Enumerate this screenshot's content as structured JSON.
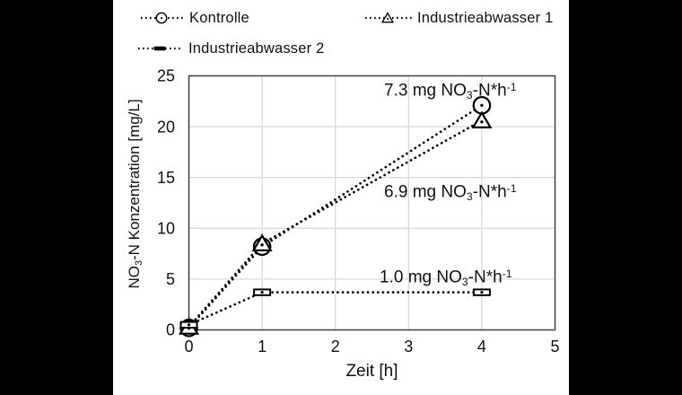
{
  "canvas": {
    "background": "#000000",
    "figure_background": "#ffffff"
  },
  "legend": {
    "position": "top",
    "items": [
      {
        "label": "Kontrolle",
        "marker": "circle",
        "line_style": "dotted"
      },
      {
        "label": "Industrieabwasser 1",
        "marker": "triangle",
        "line_style": "dotted"
      },
      {
        "label": "Industrieabwasser 2",
        "marker": "dash",
        "line_style": "dotted"
      }
    ]
  },
  "chart_data": {
    "type": "line",
    "title": "",
    "xlabel": "Zeit [h]",
    "ylabel": "NO3-N Konzentration [mg/L]",
    "ylabel_parts": [
      {
        "t": "NO"
      },
      {
        "t": "3",
        "s": "sub"
      },
      {
        "t": "-N Konzentration [mg/L]"
      }
    ],
    "xlim": [
      0,
      5
    ],
    "ylim": [
      0,
      25
    ],
    "xticks": [
      0,
      1,
      2,
      3,
      4,
      5
    ],
    "yticks": [
      0,
      5,
      10,
      15,
      20,
      25
    ],
    "grid": true,
    "grid_color": "#d9d9d9",
    "frame_color": "#3f3f3f",
    "series_color": "#000000",
    "line_style": "dotted",
    "x": [
      0,
      1,
      4
    ],
    "series": [
      {
        "name": "Kontrolle",
        "marker": "circle",
        "values": [
          0.2,
          8.2,
          22.1
        ],
        "rate": "7.3 mg NO3-N*h-1"
      },
      {
        "name": "Industrieabwasser 1",
        "marker": "triangle",
        "values": [
          0.3,
          8.5,
          20.6
        ],
        "rate": "6.9 mg NO3-N*h-1"
      },
      {
        "name": "Industrieabwasser 2",
        "marker": "dash",
        "values": [
          0.5,
          3.7,
          3.7
        ],
        "rate": "1.0 mg NO3-N*h-1"
      }
    ],
    "annotations": [
      {
        "series": "Kontrolle",
        "parts": [
          {
            "t": "7.3 mg NO"
          },
          {
            "t": "3",
            "s": "sub"
          },
          {
            "t": "-N*h"
          },
          {
            "t": "-1",
            "s": "sup"
          }
        ]
      },
      {
        "series": "Industrieabwasser 1",
        "parts": [
          {
            "t": "6.9 mg NO"
          },
          {
            "t": "3",
            "s": "sub"
          },
          {
            "t": "-N*h"
          },
          {
            "t": "-1",
            "s": "sup"
          }
        ]
      },
      {
        "series": "Industrieabwasser 2",
        "parts": [
          {
            "t": "1.0 mg NO"
          },
          {
            "t": "3",
            "s": "sub"
          },
          {
            "t": "-N*h"
          },
          {
            "t": "-1",
            "s": "sup"
          }
        ]
      }
    ]
  }
}
